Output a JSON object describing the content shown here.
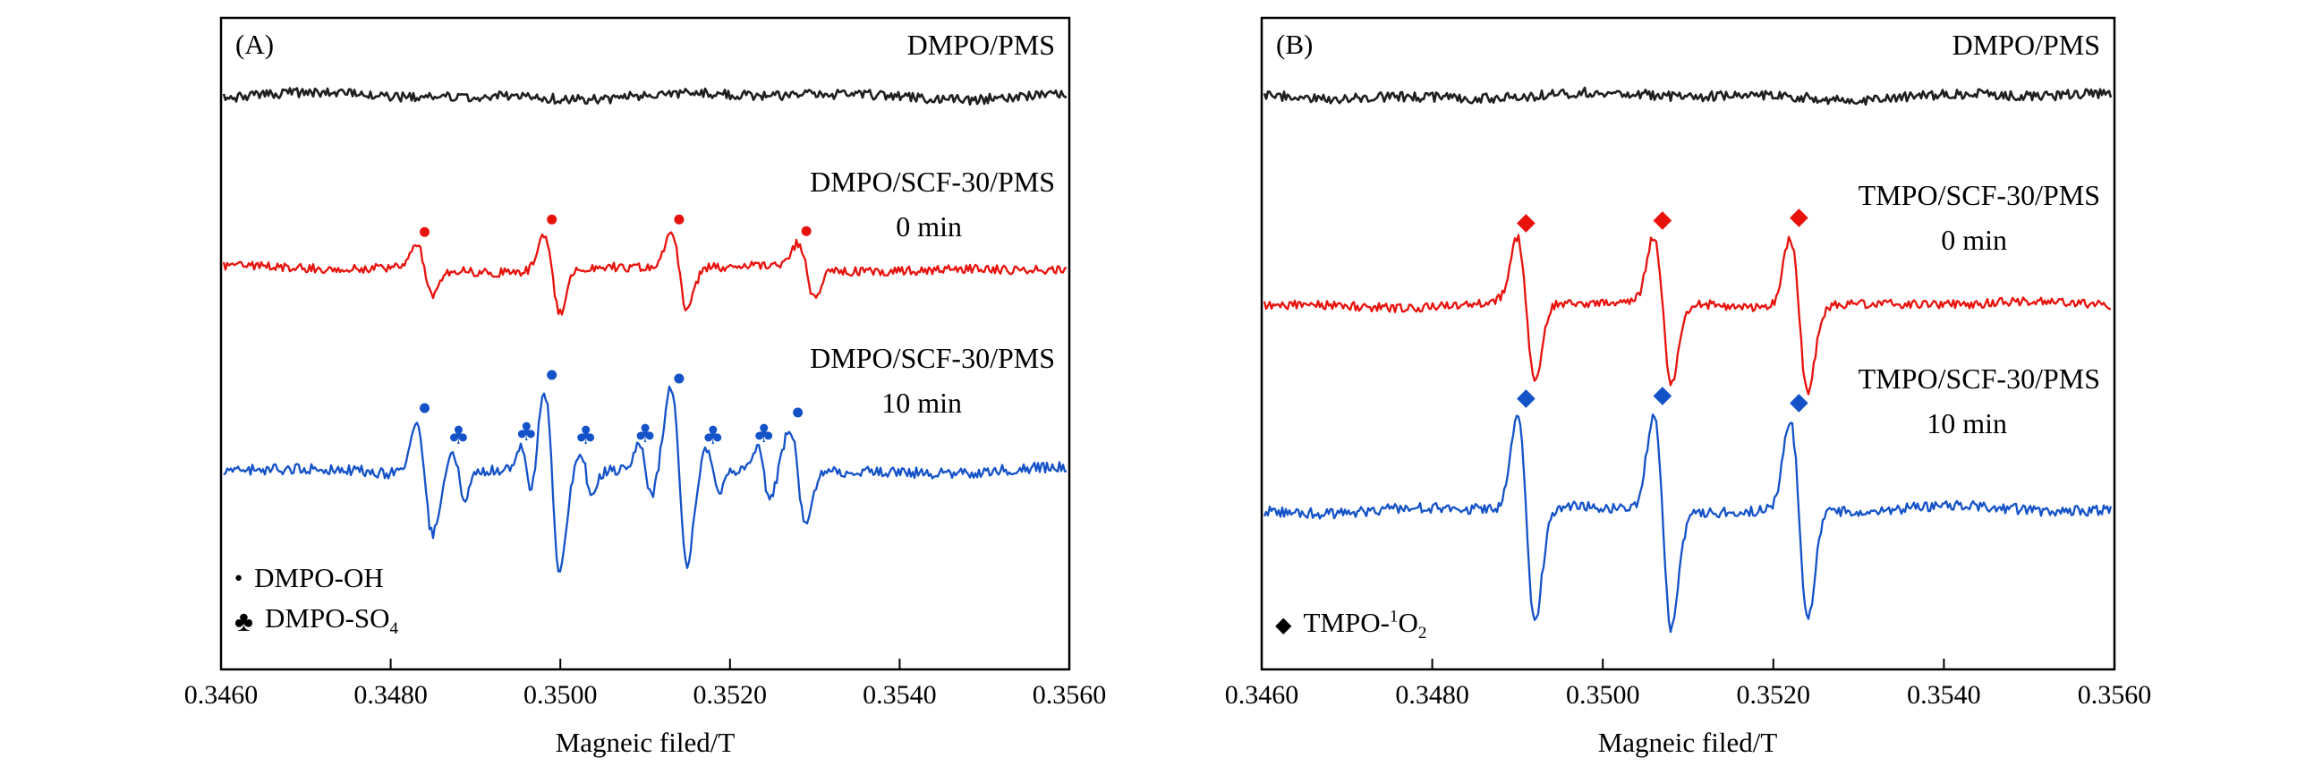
{
  "figure": {
    "background": "#ffffff",
    "frame_color": "#000000",
    "markers": {
      "dot": "●",
      "club": "♣",
      "diamond": "◆"
    }
  },
  "chart_data": [
    {
      "type": "line",
      "panel_label": "(A)",
      "xlabel": "Magneic filed/T",
      "xlim": [
        0.346,
        0.356
      ],
      "xticks": [
        {
          "value": 0.346,
          "label": "0.3460"
        },
        {
          "value": 0.348,
          "label": "0.3480"
        },
        {
          "value": 0.35,
          "label": "0.3500"
        },
        {
          "value": 0.352,
          "label": "0.3520"
        },
        {
          "value": 0.354,
          "label": "0.3540"
        },
        {
          "value": 0.356,
          "label": "0.3560"
        }
      ],
      "series": [
        {
          "name": "DMPO/PMS",
          "color": "#1f1f1f",
          "baseline_frac": 0.12,
          "noise_amp": 5.5,
          "peaks": [],
          "labels": [
            {
              "t": "DMPO/PMS",
              "y_frac": 0.016,
              "pad": 16
            }
          ]
        },
        {
          "name": "DMPO/SCF-30/PMS 0 min",
          "color": "#e8120d",
          "baseline_frac": 0.385,
          "noise_amp": 5,
          "peaks": [
            {
              "x": 0.3484,
              "amp": 26,
              "marker": "dot"
            },
            {
              "x": 0.3499,
              "amp": 40,
              "marker": "dot"
            },
            {
              "x": 0.3514,
              "amp": 40,
              "marker": "dot"
            },
            {
              "x": 0.3529,
              "amp": 27,
              "marker": "dot"
            }
          ],
          "labels": [
            {
              "t": "DMPO/SCF-30/PMS",
              "y_frac": 0.227,
              "pad": 16
            },
            {
              "t": "0 min",
              "y_frac": 0.295,
              "pad": 120
            }
          ]
        },
        {
          "name": "DMPO/SCF-30/PMS 10 min",
          "color": "#1452c8",
          "baseline_frac": 0.695,
          "noise_amp": 6,
          "peaks": [
            {
              "x": 0.3484,
              "amp": 55,
              "marker": "dot"
            },
            {
              "x": 0.3488,
              "amp": 24,
              "marker": "club",
              "w": 7
            },
            {
              "x": 0.3496,
              "amp": 28,
              "marker": "club",
              "w": 7
            },
            {
              "x": 0.3499,
              "amp": 92,
              "marker": "dot"
            },
            {
              "x": 0.3503,
              "amp": 24,
              "marker": "club",
              "w": 7
            },
            {
              "x": 0.351,
              "amp": 26,
              "marker": "club",
              "w": 7
            },
            {
              "x": 0.3514,
              "amp": 88,
              "marker": "dot"
            },
            {
              "x": 0.3518,
              "amp": 24,
              "marker": "club",
              "w": 7
            },
            {
              "x": 0.3524,
              "amp": 26,
              "marker": "club",
              "w": 7
            },
            {
              "x": 0.3528,
              "amp": 50,
              "marker": "dot"
            }
          ],
          "labels": [
            {
              "t": "DMPO/SCF-30/PMS",
              "y_frac": 0.497,
              "pad": 16
            },
            {
              "t": "10 min",
              "y_frac": 0.566,
              "pad": 120
            }
          ]
        }
      ],
      "legend": [
        {
          "marker": "dot",
          "segments": [
            {
              "t": "DMPO-OH"
            }
          ]
        },
        {
          "marker": "club",
          "segments": [
            {
              "t": "DMPO-SO"
            },
            {
              "t": "4",
              "sub": true
            }
          ]
        }
      ]
    },
    {
      "type": "line",
      "panel_label": "(B)",
      "xlabel": "Magneic filed/T",
      "xlim": [
        0.346,
        0.356
      ],
      "xticks": [
        {
          "value": 0.346,
          "label": "0.3460"
        },
        {
          "value": 0.348,
          "label": "0.3480"
        },
        {
          "value": 0.35,
          "label": "0.3500"
        },
        {
          "value": 0.352,
          "label": "0.3520"
        },
        {
          "value": 0.354,
          "label": "0.3540"
        },
        {
          "value": 0.356,
          "label": "0.3560"
        }
      ],
      "series": [
        {
          "name": "DMPO/PMS",
          "color": "#1f1f1f",
          "baseline_frac": 0.12,
          "noise_amp": 5.5,
          "peaks": [],
          "labels": [
            {
              "t": "DMPO/PMS",
              "y_frac": 0.016,
              "pad": 16
            }
          ]
        },
        {
          "name": "TMPO/SCF-30/PMS 0 min",
          "color": "#e8120d",
          "baseline_frac": 0.44,
          "noise_amp": 5,
          "peaks": [
            {
              "x": 0.3491,
              "amp": 72,
              "marker": "diamond",
              "w": 10
            },
            {
              "x": 0.3507,
              "amp": 75,
              "marker": "diamond",
              "w": 10
            },
            {
              "x": 0.3523,
              "amp": 78,
              "marker": "diamond",
              "w": 10
            }
          ],
          "labels": [
            {
              "t": "TMPO/SCF-30/PMS",
              "y_frac": 0.247,
              "pad": 16
            },
            {
              "t": "0 min",
              "y_frac": 0.316,
              "pad": 120
            }
          ]
        },
        {
          "name": "TMPO/SCF-30/PMS 10 min",
          "color": "#1452c8",
          "baseline_frac": 0.755,
          "noise_amp": 6,
          "peaks": [
            {
              "x": 0.3491,
              "amp": 105,
              "marker": "diamond",
              "w": 10
            },
            {
              "x": 0.3507,
              "amp": 108,
              "marker": "diamond",
              "w": 10
            },
            {
              "x": 0.3523,
              "amp": 100,
              "marker": "diamond",
              "w": 10
            }
          ],
          "labels": [
            {
              "t": "TMPO/SCF-30/PMS",
              "y_frac": 0.529,
              "pad": 16
            },
            {
              "t": "10 min",
              "y_frac": 0.598,
              "pad": 120
            }
          ]
        }
      ],
      "legend": [
        {
          "marker": "diamond",
          "segments": [
            {
              "t": "TMPO-"
            },
            {
              "t": "1",
              "sup": true
            },
            {
              "t": "O"
            },
            {
              "t": "2",
              "sub": true
            }
          ]
        }
      ]
    }
  ]
}
